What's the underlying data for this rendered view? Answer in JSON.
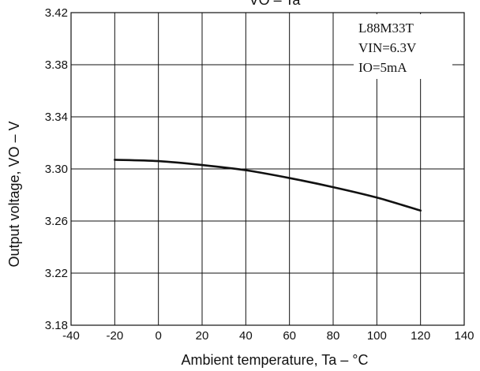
{
  "chart_data": {
    "type": "line",
    "title": "VO – Ta",
    "xlabel": "Ambient temperature, Ta – °C",
    "ylabel": "Output voltage, VO – V",
    "xlim": [
      -40,
      140
    ],
    "ylim": [
      3.18,
      3.42
    ],
    "xticks": [
      "-40",
      "-20",
      "0",
      "20",
      "40",
      "60",
      "80",
      "100",
      "120",
      "140"
    ],
    "yticks": [
      "3.42",
      "3.38",
      "3.34",
      "3.30",
      "3.26",
      "3.22",
      "3.18"
    ],
    "grid": true,
    "annotations": [
      "L88M33T",
      "VIN=6.3V",
      "IO=5mA"
    ],
    "series": [
      {
        "x": [
          -20,
          0,
          20,
          40,
          60,
          80,
          100,
          120
        ],
        "y": [
          3.307,
          3.306,
          3.303,
          3.299,
          3.293,
          3.286,
          3.278,
          3.268
        ]
      }
    ]
  }
}
